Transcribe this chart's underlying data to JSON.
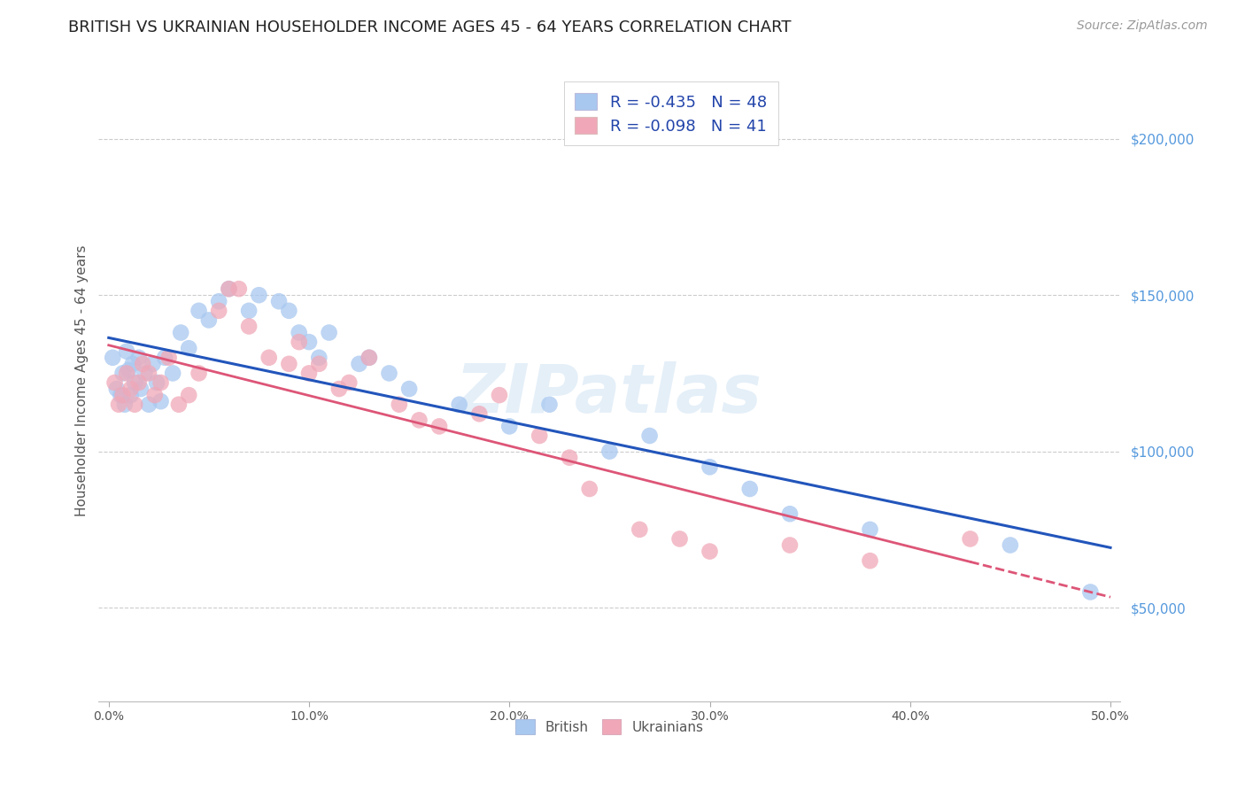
{
  "title": "BRITISH VS UKRAINIAN HOUSEHOLDER INCOME AGES 45 - 64 YEARS CORRELATION CHART",
  "source": "Source: ZipAtlas.com",
  "ylabel": "Householder Income Ages 45 - 64 years",
  "xlabel_ticks": [
    "0.0%",
    "10.0%",
    "20.0%",
    "30.0%",
    "40.0%",
    "50.0%"
  ],
  "ytick_labels": [
    "$50,000",
    "$100,000",
    "$150,000",
    "$200,000"
  ],
  "ytick_values": [
    50000,
    100000,
    150000,
    200000
  ],
  "xlim": [
    -0.005,
    0.505
  ],
  "ylim": [
    20000,
    225000
  ],
  "watermark": "ZIPatlas",
  "legend_R_british": "-0.435",
  "legend_N_british": "48",
  "legend_R_ukrainian": "-0.098",
  "legend_N_ukrainian": "41",
  "british_color": "#a8c8f0",
  "ukrainian_color": "#f0a8b8",
  "british_line_color": "#2255bb",
  "ukrainian_line_color": "#dd5577",
  "background_color": "#ffffff",
  "grid_color": "#cccccc",
  "british_x": [
    0.002,
    0.004,
    0.006,
    0.007,
    0.008,
    0.009,
    0.01,
    0.011,
    0.012,
    0.013,
    0.015,
    0.016,
    0.018,
    0.02,
    0.022,
    0.024,
    0.026,
    0.028,
    0.032,
    0.036,
    0.04,
    0.045,
    0.05,
    0.055,
    0.06,
    0.07,
    0.075,
    0.085,
    0.09,
    0.095,
    0.1,
    0.105,
    0.11,
    0.125,
    0.13,
    0.14,
    0.15,
    0.175,
    0.2,
    0.22,
    0.25,
    0.27,
    0.3,
    0.32,
    0.34,
    0.38,
    0.45,
    0.49
  ],
  "british_y": [
    130000,
    120000,
    118000,
    125000,
    115000,
    132000,
    126000,
    118000,
    128000,
    122000,
    130000,
    120000,
    125000,
    115000,
    128000,
    122000,
    116000,
    130000,
    125000,
    138000,
    133000,
    145000,
    142000,
    148000,
    152000,
    145000,
    150000,
    148000,
    145000,
    138000,
    135000,
    130000,
    138000,
    128000,
    130000,
    125000,
    120000,
    115000,
    108000,
    115000,
    100000,
    105000,
    95000,
    88000,
    80000,
    75000,
    70000,
    55000
  ],
  "ukrainian_x": [
    0.003,
    0.005,
    0.007,
    0.009,
    0.011,
    0.013,
    0.015,
    0.017,
    0.02,
    0.023,
    0.026,
    0.03,
    0.035,
    0.04,
    0.045,
    0.055,
    0.06,
    0.065,
    0.07,
    0.08,
    0.09,
    0.095,
    0.1,
    0.105,
    0.115,
    0.12,
    0.13,
    0.145,
    0.155,
    0.165,
    0.185,
    0.195,
    0.215,
    0.23,
    0.24,
    0.265,
    0.285,
    0.3,
    0.34,
    0.38,
    0.43
  ],
  "ukrainian_y": [
    122000,
    115000,
    118000,
    125000,
    120000,
    115000,
    122000,
    128000,
    125000,
    118000,
    122000,
    130000,
    115000,
    118000,
    125000,
    145000,
    152000,
    152000,
    140000,
    130000,
    128000,
    135000,
    125000,
    128000,
    120000,
    122000,
    130000,
    115000,
    110000,
    108000,
    112000,
    118000,
    105000,
    98000,
    88000,
    75000,
    72000,
    68000,
    70000,
    65000,
    72000
  ],
  "title_fontsize": 13,
  "axis_label_fontsize": 11,
  "tick_fontsize": 10,
  "source_fontsize": 10,
  "legend_fontsize": 13,
  "marker_size": 180
}
